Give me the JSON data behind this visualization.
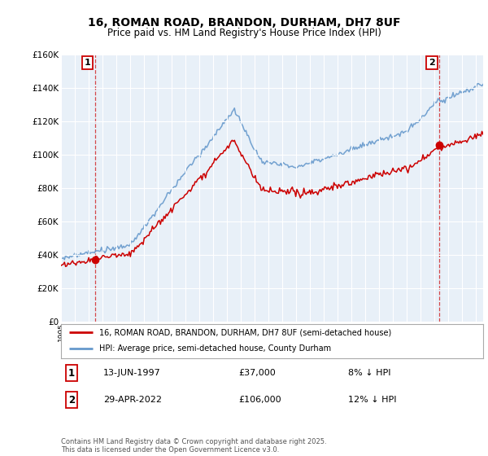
{
  "title": "16, ROMAN ROAD, BRANDON, DURHAM, DH7 8UF",
  "subtitle": "Price paid vs. HM Land Registry's House Price Index (HPI)",
  "legend_line1": "16, ROMAN ROAD, BRANDON, DURHAM, DH7 8UF (semi-detached house)",
  "legend_line2": "HPI: Average price, semi-detached house, County Durham",
  "footer": "Contains HM Land Registry data © Crown copyright and database right 2025.\nThis data is licensed under the Open Government Licence v3.0.",
  "sale1_date": "13-JUN-1997",
  "sale1_price": 37000,
  "sale1_year": 1997.45,
  "sale2_date": "29-APR-2022",
  "sale2_price": 106000,
  "sale2_year": 2022.33,
  "annotation1": "8% ↓ HPI",
  "annotation2": "12% ↓ HPI",
  "red_color": "#cc0000",
  "blue_color": "#6699cc",
  "background_plot": "#e8f0f8",
  "background_fig": "#ffffff",
  "grid_color": "#ffffff",
  "ylim": [
    0,
    160000
  ],
  "xlim_start": 1995.0,
  "xlim_end": 2025.5
}
